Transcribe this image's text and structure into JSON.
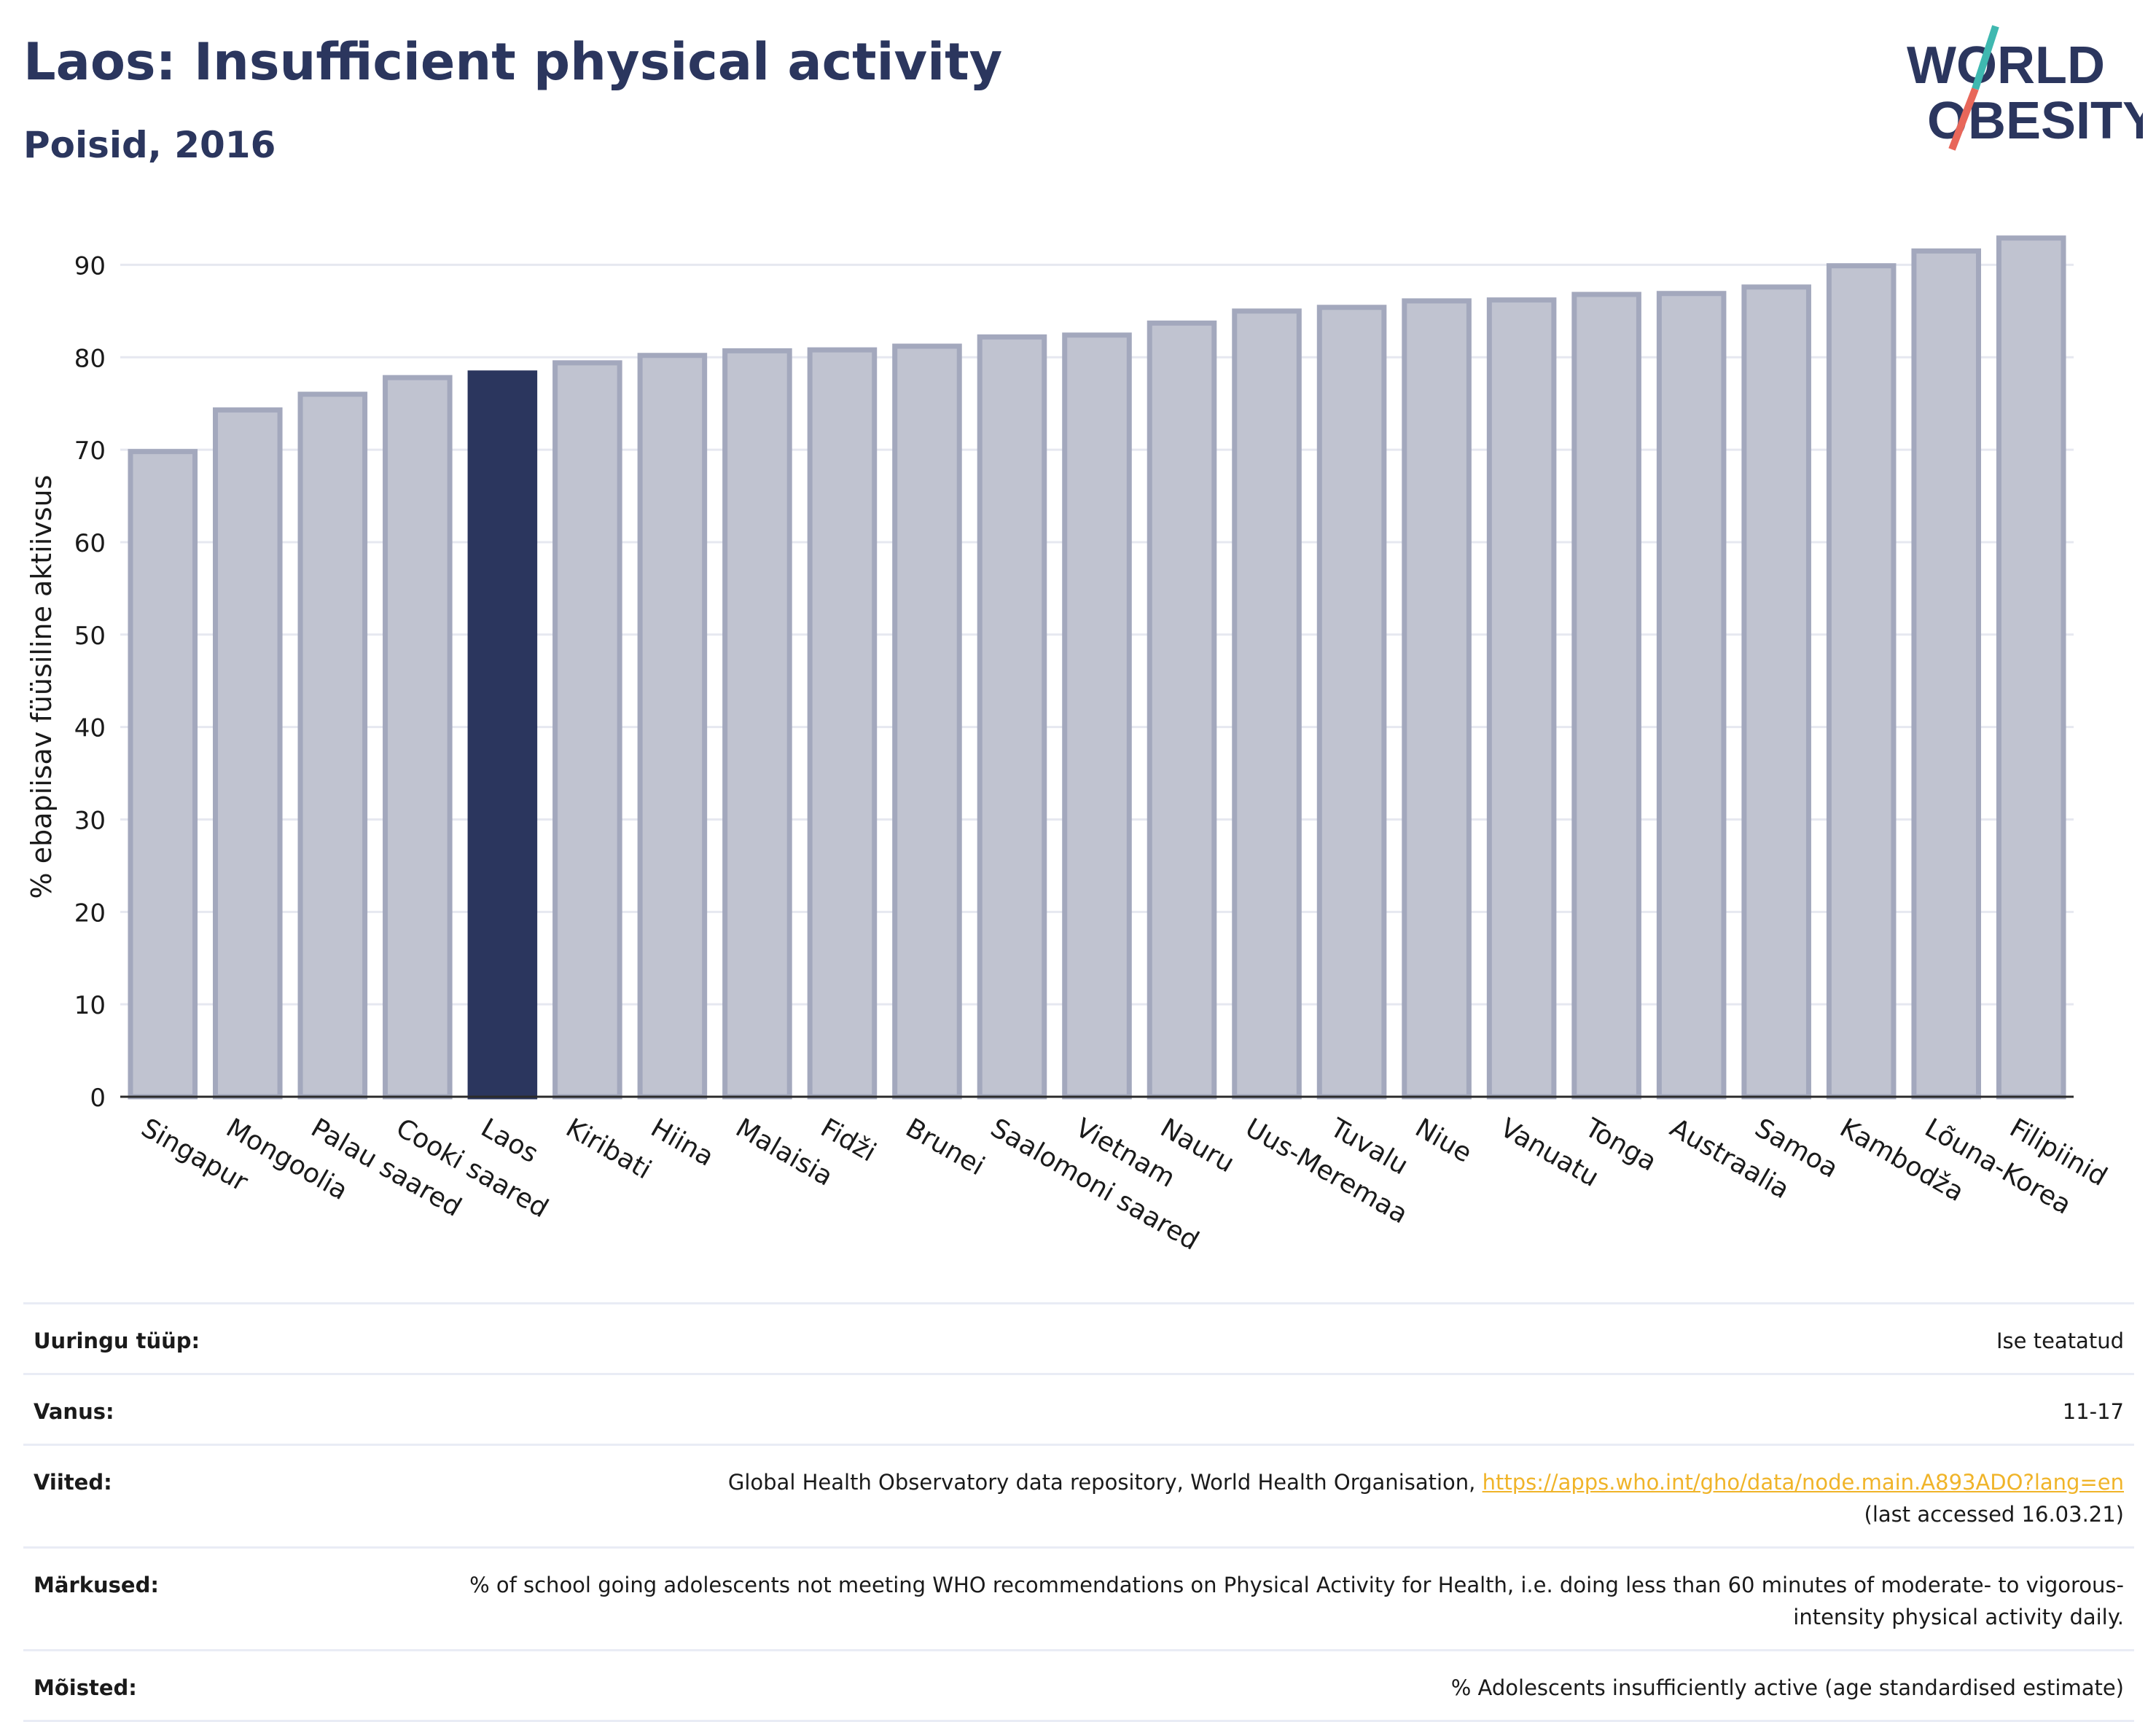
{
  "header": {
    "title": "Laos: Insufficient physical activity",
    "subtitle": "Poisid, 2016"
  },
  "logo": {
    "line1": "WORLD",
    "line2": "OBESITY",
    "accent_teal": "#3fb8b0",
    "accent_coral": "#e8675a",
    "color": "#2b365e"
  },
  "chart_data": {
    "type": "bar",
    "title": "Laos: Insufficient physical activity",
    "subtitle": "Poisid, 2016",
    "xlabel": "",
    "ylabel": "% ebapiisav füüsiline aktiivsus",
    "ylim": [
      0,
      95
    ],
    "yticks": [
      0,
      10,
      20,
      30,
      40,
      50,
      60,
      70,
      80,
      90
    ],
    "grid": true,
    "highlight": "Laos",
    "colors": {
      "bar": "#c0c3d0",
      "bar_border": "#a3a8bd",
      "highlight": "#2b365e"
    },
    "categories": [
      "Singapur",
      "Mongoolia",
      "Palau saared",
      "Cooki saared",
      "Laos",
      "Kiribati",
      "Hiina",
      "Malaisia",
      "Fidži",
      "Brunei",
      "Saalomoni saared",
      "Vietnam",
      "Nauru",
      "Uus-Meremaa",
      "Tuvalu",
      "Niue",
      "Vanuatu",
      "Tonga",
      "Austraalia",
      "Samoa",
      "Kambodža",
      "Lõuna-Korea",
      "Filipiinid"
    ],
    "values": [
      69.8,
      74.3,
      76.0,
      77.8,
      78.3,
      79.4,
      80.2,
      80.7,
      80.8,
      81.2,
      82.2,
      82.4,
      83.7,
      85.0,
      85.4,
      86.1,
      86.2,
      86.8,
      86.9,
      87.6,
      89.9,
      91.5,
      92.9
    ]
  },
  "info": {
    "rows": [
      {
        "key": "Uuringu tüüp:",
        "value": "Ise teatatud"
      },
      {
        "key": "Vanus:",
        "value": "11-17"
      },
      {
        "key": "Viited:",
        "value": "Global Health Observatory data repository, World Health Organisation, ",
        "link": "https://apps.who.int/gho/data/node.main.A893ADO?lang=en",
        "value2": "(last accessed 16.03.21)"
      },
      {
        "key": "Märkused:",
        "value": "% of school going adolescents not meeting WHO recommendations on Physical Activity for Health, i.e. doing less than 60 minutes of moderate- to vigorous-intensity physical activity daily."
      },
      {
        "key": "Mõisted:",
        "value": "% Adolescents insufficiently active (age standardised estimate)"
      }
    ]
  }
}
